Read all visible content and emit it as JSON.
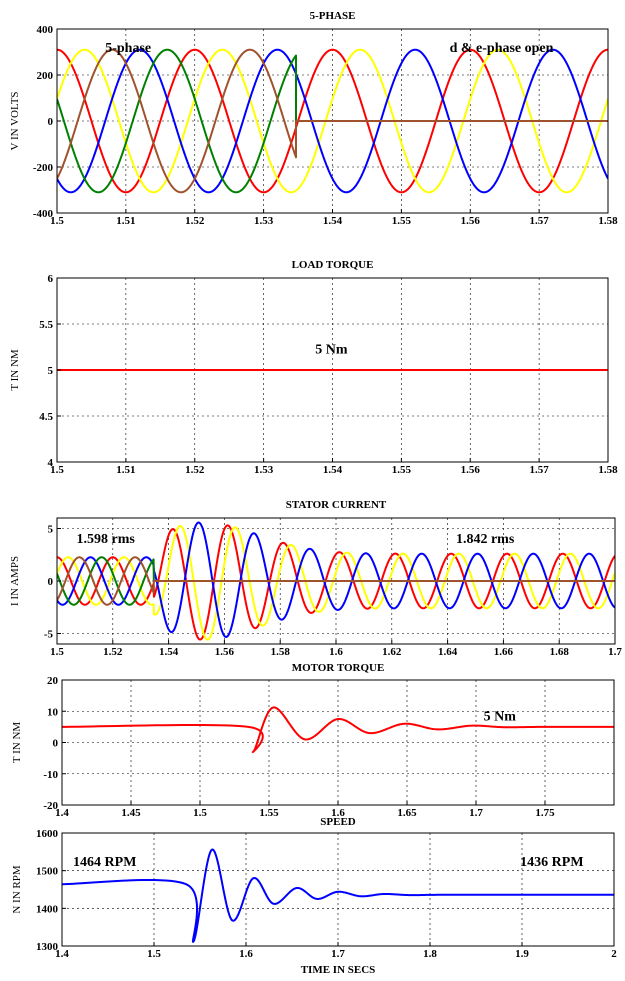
{
  "chart_data": [
    {
      "type": "line",
      "title": "5-PHASE",
      "ylabel": "V IN VOLTS",
      "xlabel": "",
      "xlim": [
        1.5,
        1.58
      ],
      "ylim": [
        -400,
        400
      ],
      "xticks": [
        1.5,
        1.51,
        1.52,
        1.53,
        1.54,
        1.55,
        1.56,
        1.57,
        1.58
      ],
      "yticks": [
        -400,
        -200,
        0,
        200,
        400
      ],
      "grid": true,
      "annotations": [
        {
          "text": "5-phase",
          "x": 1.507,
          "y": 300
        },
        {
          "text": "d & e-phase open",
          "x": 1.557,
          "y": 300
        }
      ],
      "model": {
        "kind": "sines",
        "frequency_hz": 50,
        "amplitude": 310,
        "fault_time": 1.5347,
        "phases": [
          {
            "color": "#ff0000",
            "phase_deg": 90,
            "after_fault": "continues"
          },
          {
            "color": "#ffff00",
            "phase_deg": 18,
            "after_fault": "continues"
          },
          {
            "color": "#0000ff",
            "phase_deg": -126,
            "after_fault": "continues"
          },
          {
            "color": "#008000",
            "phase_deg": 162,
            "after_fault": "zero"
          },
          {
            "color": "#a0522d",
            "phase_deg": -54,
            "after_fault": "zero"
          }
        ]
      }
    },
    {
      "type": "line",
      "title": "LOAD TORQUE",
      "ylabel": "T IN NM",
      "xlabel": "",
      "xlim": [
        1.5,
        1.58
      ],
      "ylim": [
        4,
        6
      ],
      "xticks": [
        1.5,
        1.51,
        1.52,
        1.53,
        1.54,
        1.55,
        1.56,
        1.57,
        1.58
      ],
      "yticks": [
        4,
        4.5,
        5,
        5.5,
        6
      ],
      "grid": true,
      "annotations": [
        {
          "text": "5 Nm",
          "x": 1.5375,
          "y": 5.18
        }
      ],
      "series": [
        {
          "color": "#ff0000",
          "x": [
            1.5,
            1.58
          ],
          "y": [
            5,
            5
          ]
        }
      ]
    },
    {
      "type": "line",
      "title": "STATOR CURRENT",
      "ylabel": "I IN AMPS",
      "xlabel": "",
      "xlim": [
        1.5,
        1.7
      ],
      "ylim": [
        -6,
        6
      ],
      "xticks": [
        1.5,
        1.52,
        1.54,
        1.56,
        1.58,
        1.6,
        1.62,
        1.64,
        1.66,
        1.68,
        1.7
      ],
      "yticks": [
        -5,
        0,
        5
      ],
      "grid": true,
      "annotations": [
        {
          "text": "1.598 rms",
          "x": 1.507,
          "y": 3.6
        },
        {
          "text": "1.842 rms",
          "x": 1.643,
          "y": 3.6
        }
      ],
      "model": {
        "kind": "currents",
        "frequency_hz": 50,
        "amp_before": 2.26,
        "amp_after": 2.6,
        "fault_time": 1.5347,
        "transient_amp": 3.0,
        "transient_peak": 1.552,
        "transient_decay": 0.02,
        "phases": [
          {
            "color": "#ff0000",
            "phase_deg": 90,
            "after_fault": "continues"
          },
          {
            "color": "#ffff00",
            "phase_deg": 18,
            "after_fault": "continues"
          },
          {
            "color": "#0000ff",
            "phase_deg": -126,
            "after_fault": "continues"
          },
          {
            "color": "#008000",
            "phase_deg": 162,
            "after_fault": "zero"
          },
          {
            "color": "#a0522d",
            "phase_deg": -54,
            "after_fault": "zero"
          }
        ]
      }
    },
    {
      "type": "line",
      "title": "MOTOR TORQUE",
      "ylabel": "T IN NM",
      "xlabel": "",
      "xlim": [
        1.4,
        1.8
      ],
      "ylim": [
        -20,
        20
      ],
      "xticks": [
        1.4,
        1.45,
        1.5,
        1.55,
        1.6,
        1.65,
        1.7,
        1.75
      ],
      "yticks": [
        -20,
        -10,
        0,
        10,
        20
      ],
      "grid": true,
      "annotations": [
        {
          "text": "5 Nm",
          "x": 1.7055,
          "y": 7
        }
      ],
      "series": [
        {
          "color": "#ff0000",
          "x": [
            1.4,
            1.535,
            1.5385,
            1.553,
            1.576,
            1.6,
            1.623,
            1.648,
            1.672,
            1.697,
            1.72,
            1.75,
            1.8
          ],
          "y": [
            5,
            5,
            -3,
            11.2,
            1.0,
            7.5,
            3.0,
            6.0,
            4.2,
            5.4,
            4.9,
            5.0,
            5.0
          ]
        }
      ]
    },
    {
      "type": "line",
      "title": "SPEED",
      "ylabel": "N IN RPM",
      "xlabel": "TIME IN SECS",
      "xlim": [
        1.4,
        2.0
      ],
      "ylim": [
        1300,
        1600
      ],
      "xticks": [
        1.4,
        1.5,
        1.6,
        1.7,
        1.8,
        1.9,
        2.0
      ],
      "yticks": [
        1300,
        1400,
        1500,
        1600
      ],
      "grid": true,
      "annotations": [
        {
          "text": "1464 RPM",
          "x": 1.412,
          "y": 1512
        },
        {
          "text": "1436 RPM",
          "x": 1.898,
          "y": 1512
        }
      ],
      "series": [
        {
          "color": "#0000ff",
          "x": [
            1.4,
            1.535,
            1.543,
            1.563,
            1.585,
            1.608,
            1.63,
            1.655,
            1.677,
            1.7,
            1.725,
            1.75,
            1.78,
            1.82,
            2.0
          ],
          "y": [
            1464,
            1464,
            1312,
            1556,
            1368,
            1480,
            1412,
            1454,
            1425,
            1444,
            1432,
            1438,
            1435,
            1436,
            1436
          ]
        }
      ]
    }
  ]
}
